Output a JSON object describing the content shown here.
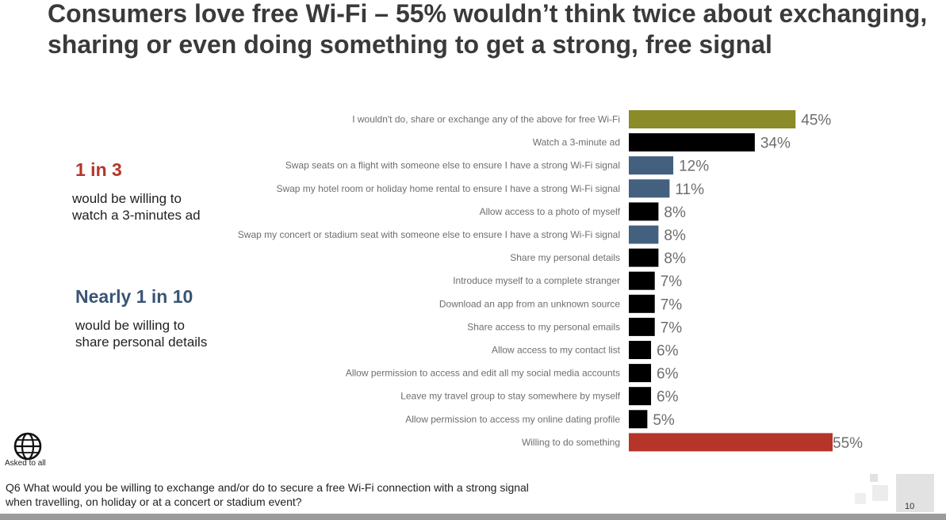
{
  "title": "Consumers love free Wi-Fi – 55% wouldn’t think twice about exchanging, sharing or even doing something to get a strong, free signal",
  "callouts": [
    {
      "big": "1 in 3",
      "text": "would be willing to watch a 3-minutes ad",
      "color": "#b5352a"
    },
    {
      "big": "Nearly 1 in 10",
      "text": "would be willing to share personal details",
      "color": "#3a5574"
    }
  ],
  "footer": {
    "asked": "Asked to all",
    "question": "Q6 What would you be willing to exchange and/or do to secure a free Wi-Fi connection with a strong signal when travelling, on holiday or at a concert or stadium event?",
    "page": "10"
  },
  "colors": {
    "olive": "#8b8b2a",
    "black": "#000000",
    "blue": "#43607f",
    "red": "#b5352a",
    "label": "#6e6e6e"
  },
  "chart_data": {
    "type": "bar",
    "orientation": "horizontal",
    "categories": [
      "I wouldn't do, share or exchange any of the above for free Wi-Fi",
      "Watch a 3-minute ad",
      "Swap seats on a flight with someone else to ensure I have a strong Wi-Fi signal",
      "Swap my hotel room or holiday home rental to ensure I have a strong Wi-Fi signal",
      "Allow access to a photo of myself",
      "Swap my concert or stadium seat with someone else to ensure I have a strong Wi-Fi signal",
      "Share my personal details",
      "Introduce myself to a complete stranger",
      "Download an app from an unknown source",
      "Share access to my personal emails",
      "Allow access to my contact list",
      "Allow permission to access and edit all my social media accounts",
      "Leave my travel group to stay somewhere by myself",
      "Allow permission to access my online dating profile",
      "Willing to do something"
    ],
    "values": [
      45,
      34,
      12,
      11,
      8,
      8,
      8,
      7,
      7,
      7,
      6,
      6,
      6,
      5,
      55
    ],
    "value_labels": [
      "45%",
      "34%",
      "12%",
      "11%",
      "8%",
      "8%",
      "8%",
      "7%",
      "7%",
      "7%",
      "6%",
      "6%",
      "6%",
      "5%",
      "55%"
    ],
    "bar_colors": [
      "olive",
      "black",
      "blue",
      "blue",
      "black",
      "blue",
      "black",
      "black",
      "black",
      "black",
      "black",
      "black",
      "black",
      "black",
      "red"
    ],
    "xlim": [
      0,
      55
    ],
    "grid": false,
    "legend": "none"
  }
}
